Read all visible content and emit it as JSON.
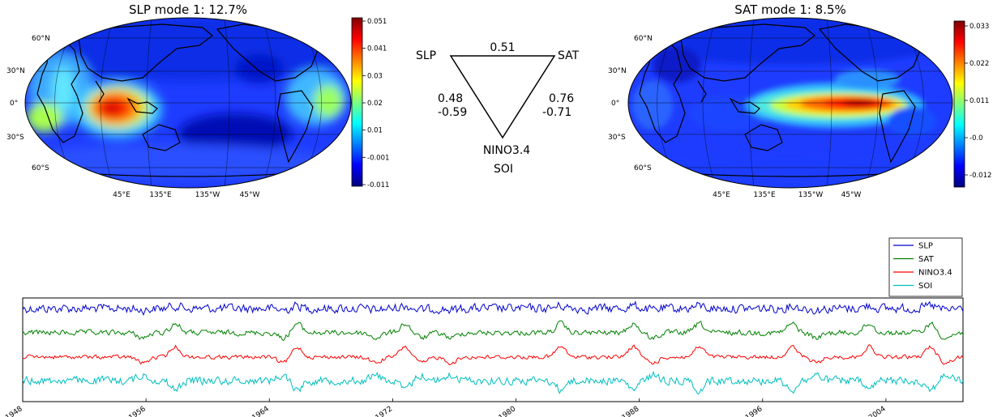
{
  "chart_data": [
    {
      "type": "heatmap",
      "title": "SLP mode 1: 12.7%",
      "projection": "Robinson (Pacific-centred)",
      "lat_labels": [
        "60°N",
        "30°N",
        "0°",
        "30°S",
        "60°S"
      ],
      "lon_labels": [
        "45°E",
        "135°E",
        "135°W",
        "45°W"
      ],
      "colorbar_ticks": [
        "0.051",
        "0.041",
        "0.03",
        "0.02",
        "0.01",
        "-0.001",
        "-0.011"
      ],
      "colorbar_range": [
        -0.011,
        0.051
      ],
      "colormap": "jet"
    },
    {
      "type": "diagram",
      "nodes": {
        "slp": "SLP",
        "sat": "SAT",
        "nino": "NINO3.4",
        "soi": "SOI"
      },
      "edges": {
        "slp_sat": "0.51",
        "slp_nino": "0.48",
        "slp_soi": "-0.59",
        "sat_nino": "0.76",
        "sat_soi": "-0.71"
      }
    },
    {
      "type": "heatmap",
      "title": "SAT mode 1: 8.5%",
      "projection": "Robinson (Pacific-centred)",
      "lat_labels": [
        "60°N",
        "30°N",
        "0°",
        "30°S",
        "60°S"
      ],
      "lon_labels": [
        "45°E",
        "135°E",
        "135°W",
        "45°W"
      ],
      "colorbar_ticks": [
        "0.033",
        "0.022",
        "0.011",
        "-0.0",
        "-0.012"
      ],
      "colorbar_range": [
        -0.019,
        0.04
      ],
      "colormap": "jet"
    },
    {
      "type": "line",
      "x_range": [
        1948,
        2009
      ],
      "x_ticks": [
        "1948",
        "1956",
        "1964",
        "1972",
        "1980",
        "1988",
        "1996",
        "2004"
      ],
      "series": [
        {
          "name": "SLP",
          "color": "#0000cc"
        },
        {
          "name": "SAT",
          "color": "#008000"
        },
        {
          "name": "NINO3.4",
          "color": "#ff0000"
        },
        {
          "name": "SOI",
          "color": "#00bfbf"
        }
      ],
      "y_axis_ticks": false,
      "legend": "top-right"
    }
  ]
}
